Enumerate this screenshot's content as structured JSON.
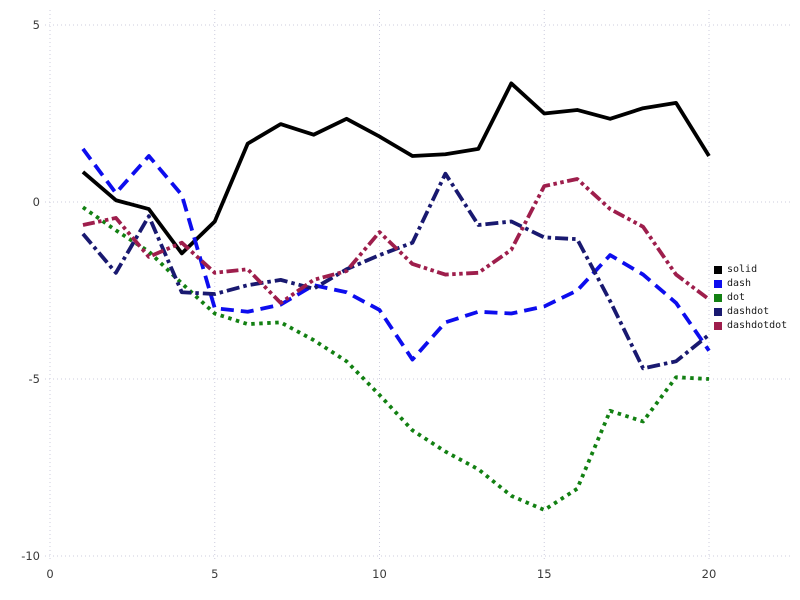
{
  "chart_data": {
    "type": "line",
    "title": "",
    "xlabel": "",
    "ylabel": "",
    "x": [
      1,
      2,
      3,
      4,
      5,
      6,
      7,
      8,
      9,
      10,
      11,
      12,
      13,
      14,
      15,
      16,
      17,
      18,
      19,
      20
    ],
    "series": [
      {
        "name": "solid",
        "style": "solid",
        "color": "#000000",
        "values": [
          0.85,
          0.05,
          -0.2,
          -1.45,
          -0.55,
          1.65,
          2.2,
          1.9,
          2.35,
          1.85,
          1.3,
          1.35,
          1.5,
          3.35,
          2.5,
          2.6,
          2.35,
          2.65,
          2.8,
          1.3
        ]
      },
      {
        "name": "dash",
        "style": "dash",
        "color": "#0d0dee",
        "values": [
          1.5,
          0.25,
          1.3,
          0.2,
          -3.0,
          -3.1,
          -2.9,
          -2.35,
          -2.55,
          -3.05,
          -4.45,
          -3.4,
          -3.1,
          -3.15,
          -2.95,
          -2.5,
          -1.5,
          -2.05,
          -2.85,
          -4.2
        ]
      },
      {
        "name": "dot",
        "style": "dot",
        "color": "#128012",
        "values": [
          -0.15,
          -0.8,
          -1.4,
          -2.3,
          -3.15,
          -3.45,
          -3.4,
          -3.9,
          -4.5,
          -5.45,
          -6.45,
          -7.05,
          -7.55,
          -8.3,
          -8.7,
          -8.1,
          -5.9,
          -6.2,
          -4.95,
          -5.0
        ]
      },
      {
        "name": "dashdot",
        "style": "dashdot",
        "color": "#191970",
        "values": [
          -0.9,
          -2.0,
          -0.4,
          -2.55,
          -2.6,
          -2.35,
          -2.2,
          -2.45,
          -1.9,
          -1.5,
          -1.15,
          0.8,
          -0.65,
          -0.55,
          -1.0,
          -1.05,
          -2.8,
          -4.7,
          -4.5,
          -3.75
        ]
      },
      {
        "name": "dashdotdot",
        "style": "dashdotdot",
        "color": "#9e1e4c",
        "values": [
          -0.65,
          -0.45,
          -1.55,
          -1.15,
          -2.0,
          -1.9,
          -2.85,
          -2.2,
          -1.95,
          -0.85,
          -1.75,
          -2.05,
          -2.0,
          -1.35,
          0.45,
          0.65,
          -0.2,
          -0.7,
          -2.05,
          -2.75
        ]
      }
    ],
    "x_ticks": [
      0,
      5,
      10,
      15,
      20
    ],
    "y_ticks": [
      -10,
      -5,
      0,
      5
    ],
    "xlim": [
      0,
      20
    ],
    "ylim": [
      -10,
      5
    ],
    "grid": "dotted",
    "grid_color": "#ccccdd",
    "tick_color": "#3a3a3a",
    "legend_position": "right",
    "legend_labels": [
      "solid",
      "dash",
      "dot",
      "dashdot",
      "dashdotdot"
    ]
  }
}
